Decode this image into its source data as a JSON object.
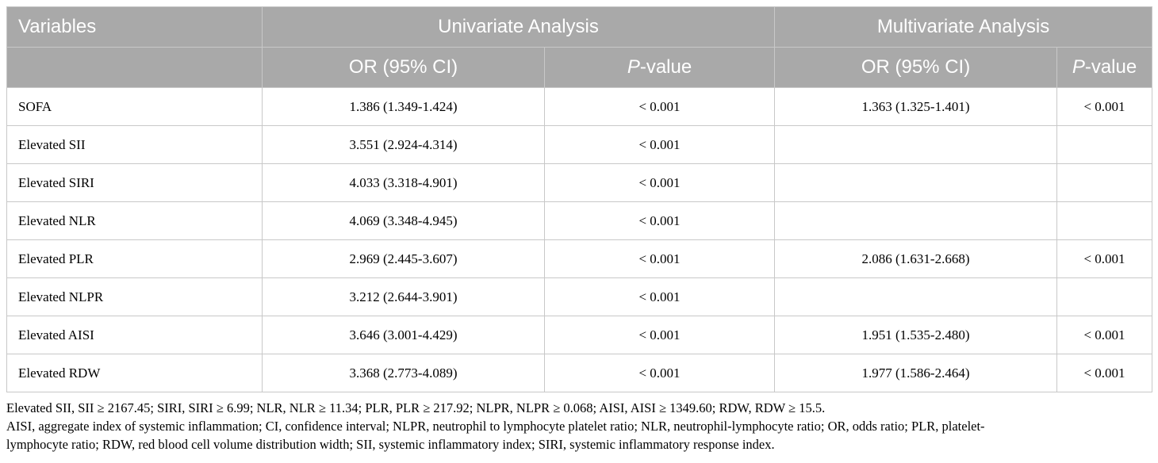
{
  "header": {
    "variables": "Variables",
    "univariate": "Univariate Analysis",
    "multivariate": "Multivariate Analysis",
    "or_ci": "OR (95% CI)",
    "p_prefix": "P",
    "p_suffix": "-value"
  },
  "rows": [
    {
      "variable": "SOFA",
      "uni_or": "1.386 (1.349-1.424)",
      "uni_p": "< 0.001",
      "multi_or": "1.363 (1.325-1.401)",
      "multi_p": "< 0.001"
    },
    {
      "variable": "Elevated SII",
      "uni_or": "3.551 (2.924-4.314)",
      "uni_p": "< 0.001",
      "multi_or": "",
      "multi_p": ""
    },
    {
      "variable": "Elevated SIRI",
      "uni_or": "4.033 (3.318-4.901)",
      "uni_p": "< 0.001",
      "multi_or": "",
      "multi_p": ""
    },
    {
      "variable": "Elevated NLR",
      "uni_or": "4.069 (3.348-4.945)",
      "uni_p": "< 0.001",
      "multi_or": "",
      "multi_p": ""
    },
    {
      "variable": "Elevated PLR",
      "uni_or": "2.969 (2.445-3.607)",
      "uni_p": "< 0.001",
      "multi_or": "2.086 (1.631-2.668)",
      "multi_p": "< 0.001"
    },
    {
      "variable": "Elevated NLPR",
      "uni_or": "3.212 (2.644-3.901)",
      "uni_p": "< 0.001",
      "multi_or": "",
      "multi_p": ""
    },
    {
      "variable": "Elevated AISI",
      "uni_or": "3.646 (3.001-4.429)",
      "uni_p": "< 0.001",
      "multi_or": "1.951 (1.535-2.480)",
      "multi_p": "< 0.001"
    },
    {
      "variable": "Elevated RDW",
      "uni_or": "3.368 (2.773-4.089)",
      "uni_p": "< 0.001",
      "multi_or": "1.977 (1.586-2.464)",
      "multi_p": "< 0.001"
    }
  ],
  "footnotes": {
    "line1": "Elevated SII, SII ≥ 2167.45; SIRI, SIRI ≥ 6.99; NLR, NLR ≥ 11.34; PLR, PLR ≥ 217.92; NLPR, NLPR ≥ 0.068; AISI, AISI ≥ 1349.60; RDW, RDW ≥ 15.5.",
    "line2": "AISI, aggregate index of systemic inflammation; CI, confidence interval; NLPR, neutrophil to lymphocyte platelet ratio; NLR, neutrophil-lymphocyte ratio; OR, odds ratio; PLR, platelet-",
    "line3": "lymphocyte ratio; RDW, red blood cell volume distribution width; SII, systemic inflammatory index; SIRI, systemic inflammatory response index."
  }
}
